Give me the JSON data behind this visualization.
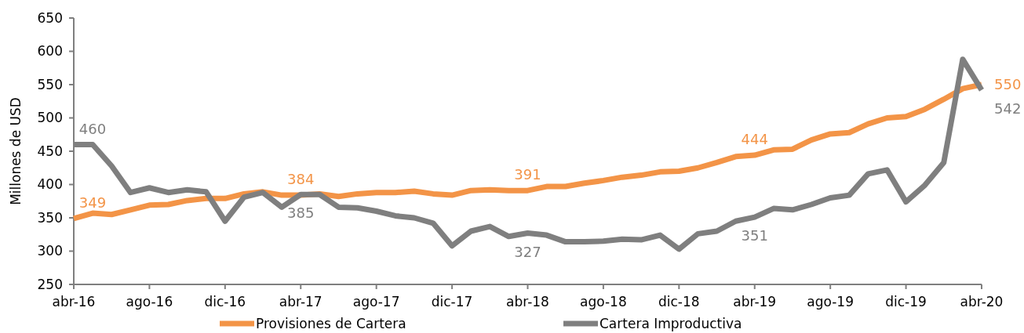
{
  "chart_data": {
    "type": "line",
    "ylabel": "Millones de USD",
    "categories": [
      "abr-16",
      null,
      null,
      null,
      "ago-16",
      null,
      null,
      null,
      "dic-16",
      null,
      null,
      null,
      "abr-17",
      null,
      null,
      null,
      "ago-17",
      null,
      null,
      null,
      "dic-17",
      null,
      null,
      null,
      "abr-18",
      null,
      null,
      null,
      "ago-18",
      null,
      null,
      null,
      "dic-18",
      null,
      null,
      null,
      "abr-19",
      null,
      null,
      null,
      "ago-19",
      null,
      null,
      null,
      "dic-19",
      null,
      null,
      null,
      "abr-20"
    ],
    "ylim": [
      250,
      650
    ],
    "yticks": [
      250,
      300,
      350,
      400,
      450,
      500,
      550,
      600,
      650
    ],
    "grid": false,
    "legend": "bottom",
    "marker": "none",
    "line_style": "solid",
    "series": [
      {
        "name": "Provisiones de Cartera",
        "color": "#f39447",
        "values": [
          349,
          357,
          355,
          362,
          369,
          370,
          376,
          379,
          379,
          386,
          389,
          384,
          384,
          386,
          382,
          386,
          388,
          388,
          390,
          386,
          384,
          391,
          392,
          391,
          391,
          397,
          397,
          402,
          406,
          411,
          414,
          419,
          420,
          425,
          433,
          442,
          444,
          452,
          453,
          467,
          476,
          478,
          491,
          500,
          502,
          513,
          528,
          544,
          550
        ],
        "value_labels": [
          "349",
          null,
          null,
          null,
          null,
          null,
          null,
          null,
          null,
          null,
          null,
          null,
          "384",
          null,
          null,
          null,
          null,
          null,
          null,
          null,
          null,
          null,
          null,
          null,
          "391",
          null,
          null,
          null,
          null,
          null,
          null,
          null,
          null,
          null,
          null,
          null,
          "444",
          null,
          null,
          null,
          null,
          null,
          null,
          null,
          null,
          null,
          null,
          null,
          "550"
        ]
      },
      {
        "name": "Cartera Improductiva",
        "color": "#7f7f7f",
        "values": [
          460,
          460,
          428,
          388,
          395,
          388,
          392,
          389,
          345,
          381,
          388,
          366,
          385,
          385,
          366,
          365,
          360,
          353,
          350,
          342,
          308,
          330,
          337,
          322,
          327,
          324,
          314,
          314,
          315,
          318,
          317,
          324,
          303,
          326,
          330,
          345,
          351,
          364,
          362,
          370,
          380,
          384,
          416,
          422,
          374,
          399,
          433,
          588,
          542
        ],
        "value_labels": [
          "460",
          null,
          null,
          null,
          null,
          null,
          null,
          null,
          null,
          null,
          null,
          null,
          "385",
          null,
          null,
          null,
          null,
          null,
          null,
          null,
          null,
          null,
          null,
          null,
          "327",
          null,
          null,
          null,
          null,
          null,
          null,
          null,
          null,
          null,
          null,
          null,
          "351",
          null,
          null,
          null,
          null,
          null,
          null,
          null,
          null,
          null,
          null,
          null,
          "542"
        ]
      }
    ]
  }
}
